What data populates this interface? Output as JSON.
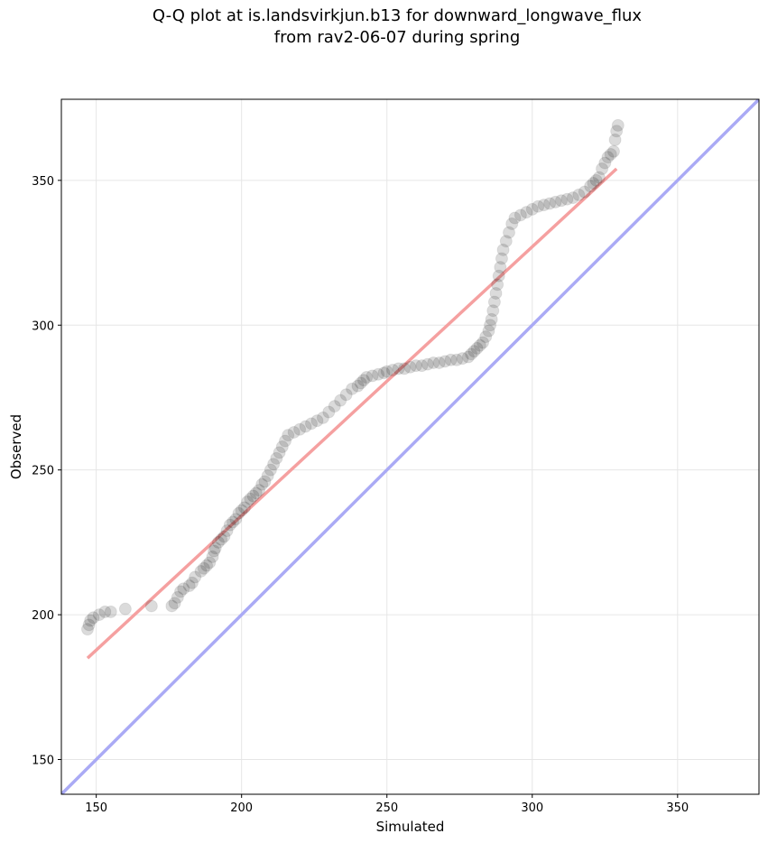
{
  "chart_data": {
    "type": "scatter",
    "title_line1": "Q-Q plot at is.landsvirkjun.b13 for downward_longwave_flux",
    "title_line2": "from rav2-06-07 during spring",
    "xlabel": "Simulated",
    "ylabel": "Observed",
    "xlim": [
      138,
      378
    ],
    "ylim": [
      138,
      378
    ],
    "xticks": [
      150,
      200,
      250,
      300,
      350
    ],
    "yticks": [
      150,
      200,
      250,
      300,
      350
    ],
    "grid": true,
    "reference_line": {
      "from": [
        138,
        138
      ],
      "to": [
        378,
        378
      ],
      "color": "#aaaaf5"
    },
    "fit_line": {
      "from": [
        147,
        185
      ],
      "to": [
        329,
        354
      ],
      "color": "#f5a0a0"
    },
    "point_color": "#000000",
    "points": [
      [
        147,
        195
      ],
      [
        147.5,
        196.5
      ],
      [
        148,
        198
      ],
      [
        149,
        199
      ],
      [
        151,
        200
      ],
      [
        153,
        201
      ],
      [
        155,
        201
      ],
      [
        160,
        202
      ],
      [
        169,
        203
      ],
      [
        176,
        203
      ],
      [
        177,
        204
      ],
      [
        178,
        206
      ],
      [
        179,
        208
      ],
      [
        180,
        209
      ],
      [
        182,
        210
      ],
      [
        183,
        211
      ],
      [
        184,
        213
      ],
      [
        186,
        215
      ],
      [
        187,
        216
      ],
      [
        188,
        217
      ],
      [
        189,
        218
      ],
      [
        190,
        220
      ],
      [
        190.5,
        222
      ],
      [
        191,
        223
      ],
      [
        192,
        225
      ],
      [
        193,
        226
      ],
      [
        194,
        227
      ],
      [
        195,
        229
      ],
      [
        196,
        231
      ],
      [
        197,
        232
      ],
      [
        198,
        233
      ],
      [
        199,
        235
      ],
      [
        200,
        236
      ],
      [
        201,
        237
      ],
      [
        202,
        239
      ],
      [
        203,
        240
      ],
      [
        204,
        241
      ],
      [
        205,
        242
      ],
      [
        206,
        243
      ],
      [
        207,
        245
      ],
      [
        208,
        246
      ],
      [
        209,
        248
      ],
      [
        210,
        250
      ],
      [
        211,
        252
      ],
      [
        212,
        254
      ],
      [
        213,
        256
      ],
      [
        214,
        258
      ],
      [
        215,
        260
      ],
      [
        216,
        262
      ],
      [
        218,
        263
      ],
      [
        220,
        264
      ],
      [
        222,
        265
      ],
      [
        224,
        266
      ],
      [
        226,
        267
      ],
      [
        228,
        268
      ],
      [
        230,
        270
      ],
      [
        232,
        272
      ],
      [
        234,
        274
      ],
      [
        236,
        276
      ],
      [
        238,
        278
      ],
      [
        240,
        279
      ],
      [
        241,
        280
      ],
      [
        242,
        281
      ],
      [
        243,
        282
      ],
      [
        245,
        282.5
      ],
      [
        247,
        283
      ],
      [
        249,
        283.5
      ],
      [
        250,
        284
      ],
      [
        252,
        284.5
      ],
      [
        254,
        285
      ],
      [
        256,
        285
      ],
      [
        258,
        285.5
      ],
      [
        260,
        286
      ],
      [
        262,
        286
      ],
      [
        264,
        286.5
      ],
      [
        266,
        287
      ],
      [
        268,
        287
      ],
      [
        270,
        287.5
      ],
      [
        272,
        288
      ],
      [
        274,
        288
      ],
      [
        276,
        288.5
      ],
      [
        278,
        289
      ],
      [
        279,
        290
      ],
      [
        280,
        291
      ],
      [
        281,
        292
      ],
      [
        282,
        293
      ],
      [
        283,
        294
      ],
      [
        284,
        296
      ],
      [
        285,
        298
      ],
      [
        285.5,
        300
      ],
      [
        286,
        302
      ],
      [
        286.5,
        305
      ],
      [
        287,
        308
      ],
      [
        287.5,
        311
      ],
      [
        288,
        314
      ],
      [
        288.5,
        317
      ],
      [
        289,
        320
      ],
      [
        289.5,
        323
      ],
      [
        290,
        326
      ],
      [
        291,
        329
      ],
      [
        292,
        332
      ],
      [
        293,
        335
      ],
      [
        294,
        337
      ],
      [
        296,
        338
      ],
      [
        298,
        339
      ],
      [
        300,
        340
      ],
      [
        302,
        341
      ],
      [
        304,
        341.5
      ],
      [
        306,
        342
      ],
      [
        308,
        342.5
      ],
      [
        310,
        343
      ],
      [
        312,
        343.5
      ],
      [
        314,
        344
      ],
      [
        316,
        345
      ],
      [
        318,
        346
      ],
      [
        320,
        348
      ],
      [
        321,
        349
      ],
      [
        322,
        350
      ],
      [
        323,
        351
      ],
      [
        324,
        354
      ],
      [
        325,
        356
      ],
      [
        326,
        358
      ],
      [
        327,
        359
      ],
      [
        328,
        360
      ],
      [
        328.5,
        364
      ],
      [
        329,
        367
      ],
      [
        329.5,
        369
      ]
    ]
  }
}
